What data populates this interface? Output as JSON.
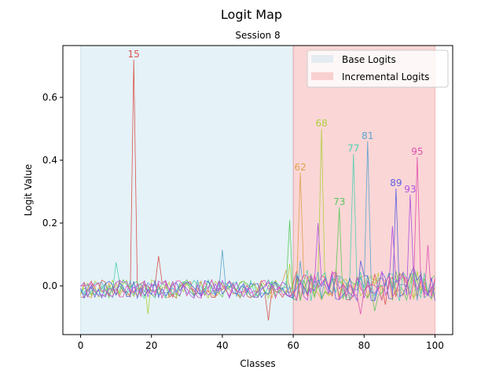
{
  "chart_data": {
    "type": "line",
    "title": "Logit Map",
    "subtitle": "Session 8",
    "xlabel": "Classes",
    "ylabel": "Logit Value",
    "xlim": [
      -5,
      105
    ],
    "ylim": [
      -0.155,
      0.765
    ],
    "xticks": [
      0,
      20,
      40,
      60,
      80,
      100
    ],
    "yticks": [
      0.0,
      0.2,
      0.4,
      0.6
    ],
    "ytick_labels": [
      "0.0",
      "0.2",
      "0.4",
      "0.6"
    ],
    "grid": false,
    "legend_position": "top-right",
    "regions": [
      {
        "name": "Base Logits",
        "x_start": 0,
        "x_end": 60,
        "color": "#add8e6"
      },
      {
        "name": "Incremental Logits",
        "x_start": 60,
        "x_end": 100,
        "color": "#f08080"
      }
    ],
    "noise_amplitude": 0.03,
    "series": [
      {
        "color": "#d9534f",
        "peaks": [
          [
            15,
            0.72
          ],
          [
            22,
            0.095
          ],
          [
            53,
            -0.11
          ],
          [
            86,
            -0.06
          ]
        ]
      },
      {
        "color": "#e0a050",
        "peaks": [
          [
            62,
            0.36
          ],
          [
            72,
            0.05
          ],
          [
            58,
            0.05
          ]
        ]
      },
      {
        "color": "#b0d040",
        "peaks": [
          [
            68,
            0.5
          ],
          [
            59,
            0.07
          ],
          [
            19,
            -0.09
          ]
        ]
      },
      {
        "color": "#5cc85c",
        "peaks": [
          [
            73,
            0.25
          ],
          [
            59,
            0.21
          ],
          [
            83,
            -0.08
          ]
        ]
      },
      {
        "color": "#50d0b0",
        "peaks": [
          [
            77,
            0.42
          ],
          [
            10,
            0.075
          ],
          [
            64,
            0.05
          ]
        ]
      },
      {
        "color": "#5ba3d0",
        "peaks": [
          [
            81,
            0.46
          ],
          [
            40,
            0.115
          ],
          [
            62,
            0.08
          ]
        ]
      },
      {
        "color": "#6060e0",
        "peaks": [
          [
            89,
            0.31
          ],
          [
            79,
            0.08
          ],
          [
            94,
            0.06
          ]
        ]
      },
      {
        "color": "#b050e0",
        "peaks": [
          [
            93,
            0.29
          ],
          [
            67,
            0.2
          ],
          [
            88,
            0.19
          ]
        ]
      },
      {
        "color": "#e050b0",
        "peaks": [
          [
            95,
            0.41
          ],
          [
            98,
            0.13
          ],
          [
            79,
            -0.09
          ]
        ]
      }
    ],
    "annotations": [
      {
        "text": "15",
        "x": 15,
        "y": 0.72,
        "color": "#d9534f"
      },
      {
        "text": "62",
        "x": 62,
        "y": 0.36,
        "color": "#e0a050"
      },
      {
        "text": "68",
        "x": 68,
        "y": 0.5,
        "color": "#b0d040"
      },
      {
        "text": "73",
        "x": 73,
        "y": 0.25,
        "color": "#5cc85c"
      },
      {
        "text": "77",
        "x": 77,
        "y": 0.42,
        "color": "#50d0b0"
      },
      {
        "text": "81",
        "x": 81,
        "y": 0.46,
        "color": "#5ba3d0"
      },
      {
        "text": "89",
        "x": 89,
        "y": 0.31,
        "color": "#6060e0"
      },
      {
        "text": "93",
        "x": 93,
        "y": 0.29,
        "color": "#b050e0"
      },
      {
        "text": "95",
        "x": 95,
        "y": 0.41,
        "color": "#e050b0"
      }
    ]
  }
}
